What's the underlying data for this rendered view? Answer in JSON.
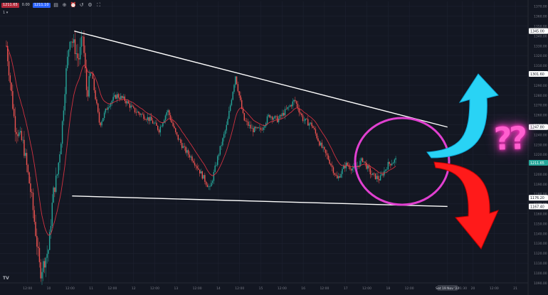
{
  "toolbar": {
    "sell_price": "1211.65",
    "spread": "0.00",
    "buy_price": "1211.10",
    "icons": [
      "indicators-icon",
      "compare-icon",
      "alert-icon",
      "replay-icon",
      "settings-icon",
      "fullscreen-icon"
    ]
  },
  "interval": "1",
  "price_axis": {
    "labels": [
      "1370.00",
      "1360.00",
      "1350.00",
      "1340.00",
      "1330.00",
      "1320.00",
      "1310.00",
      "1300.00",
      "1290.00",
      "1280.00",
      "1270.00",
      "1260.00",
      "1250.00",
      "1240.00",
      "1230.00",
      "1220.00",
      "1210.00",
      "1200.00",
      "1190.00",
      "1180.00",
      "1170.00",
      "1160.00",
      "1150.00",
      "1140.00",
      "1130.00",
      "1120.00",
      "1110.00",
      "1100.00",
      "1090.00"
    ],
    "markers": [
      {
        "text": "1345.00",
        "color": "#ffffff",
        "text_color": "#131722",
        "value": 1345
      },
      {
        "text": "1301.60",
        "color": "#ffffff",
        "text_color": "#131722",
        "value": 1301.6
      },
      {
        "text": "1247.80",
        "color": "#ffffff",
        "text_color": "#131722",
        "value": 1247.8
      },
      {
        "text": "1211.65",
        "color": "#26a69a",
        "text_color": "#ffffff",
        "value": 1211.65
      },
      {
        "text": "1176.20",
        "color": "#ffffff",
        "text_color": "#131722",
        "value": 1176.2
      },
      {
        "text": "1167.40",
        "color": "#ffffff",
        "text_color": "#131722",
        "value": 1167.4
      }
    ]
  },
  "time_axis": {
    "labels": [
      "12:00",
      "10",
      "12:00",
      "11",
      "12:00",
      "12",
      "12:00",
      "13",
      "12:00",
      "14",
      "12:00",
      "15",
      "12:00",
      "16",
      "12:00",
      "17",
      "12:00",
      "18",
      "12:00",
      "Sat 19 Nov '22",
      "01:30",
      "20",
      "12:00",
      "21"
    ],
    "highlight": "Sat 19 Nov '22"
  },
  "annotation": {
    "text": "??",
    "up_arrow_color": "#29d3f5",
    "down_arrow_color": "#ff1a1a",
    "circle_color": "#e040d0",
    "trendline_color": "#ffffff"
  },
  "colors": {
    "background": "#131722",
    "grid": "#1e2230",
    "up": "#26a69a",
    "down": "#ef5350",
    "ma": "#f23645"
  },
  "chart_data": {
    "type": "line",
    "ylim": [
      1090,
      1375
    ],
    "trendlines": [
      {
        "from": [
          10.6,
          1345
        ],
        "to": [
          19.4,
          1247.8
        ]
      },
      {
        "from": [
          10.55,
          1178
        ],
        "to": [
          19.4,
          1167.4
        ]
      }
    ],
    "x": [
      9.0,
      9.2,
      9.4,
      9.6,
      9.8,
      10.0,
      10.1,
      10.2,
      10.3,
      10.4,
      10.5,
      10.6,
      10.7,
      10.8,
      10.9,
      11.0,
      11.2,
      11.4,
      11.6,
      11.8,
      12.0,
      12.2,
      12.4,
      12.6,
      12.8,
      13.0,
      13.2,
      13.4,
      13.6,
      13.8,
      14.0,
      14.2,
      14.4,
      14.6,
      14.8,
      15.0,
      15.2,
      15.4,
      15.6,
      15.8,
      16.0,
      16.2,
      16.4,
      16.6,
      16.8,
      17.0,
      17.2,
      17.4,
      17.6,
      17.8,
      18.0,
      18.2
    ],
    "series": [
      {
        "values": [
          1330,
          1250,
          1230,
          1175,
          1100,
          1125,
          1180,
          1200,
          1240,
          1300,
          1340,
          1330,
          1315,
          1340,
          1280,
          1305,
          1250,
          1270,
          1280,
          1275,
          1265,
          1260,
          1255,
          1245,
          1265,
          1240,
          1225,
          1215,
          1200,
          1185,
          1220,
          1250,
          1300,
          1255,
          1245,
          1245,
          1260,
          1255,
          1265,
          1275,
          1255,
          1250,
          1230,
          1215,
          1195,
          1210,
          1205,
          1215,
          1200,
          1195,
          1210,
          1215
        ]
      }
    ]
  }
}
